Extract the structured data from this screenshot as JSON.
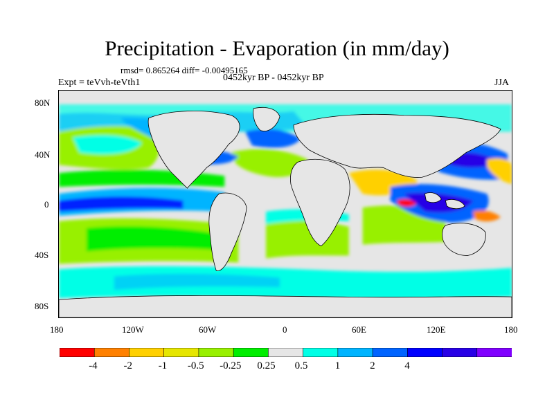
{
  "title": "Precipitation - Evaporation (in mm/day)",
  "stats": "rmsd= 0.865264 diff= -0.00495165",
  "experiment": "Expt = teVvh-teVth1",
  "period": "0452kyr BP - 0452kyr BP",
  "season": "JJA",
  "axes": {
    "lat_ticks": [
      "80N",
      "40N",
      "0",
      "40S",
      "80S"
    ],
    "lon_ticks": [
      "180",
      "120W",
      "60W",
      "0",
      "60E",
      "120E",
      "180"
    ]
  },
  "colorbar": {
    "colors": [
      "#ff0000",
      "#ff8000",
      "#ffd000",
      "#e6e600",
      "#98f000",
      "#00ee00",
      "#e6e6e6",
      "#00ffe6",
      "#00b4ff",
      "#0064ff",
      "#0000ff",
      "#2800e6",
      "#8000ff"
    ],
    "labels": [
      "-4",
      "-2",
      "-1",
      "-0.5",
      "-0.25",
      "0.25",
      "0.5",
      "1",
      "2",
      "4"
    ]
  },
  "colors": {
    "land": "#e6e6e6",
    "ocean_neutral": "#e6e6e6",
    "coast": "#000000"
  }
}
